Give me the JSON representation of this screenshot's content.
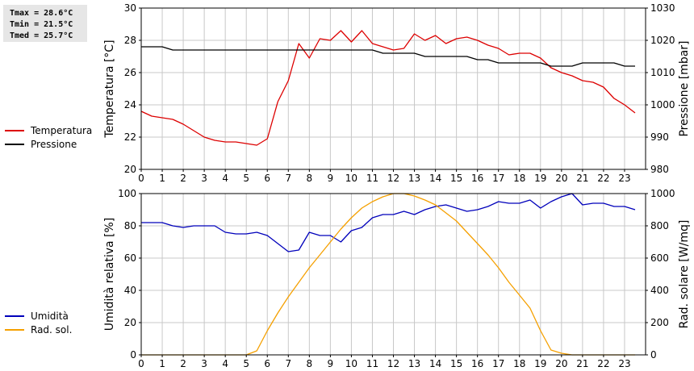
{
  "stats": {
    "tmax": "Tmax = 28.6°C",
    "tmin": "Tmin = 21.5°C",
    "tmed": "Tmed = 25.7°C"
  },
  "colors": {
    "temperature": "#dd0000",
    "pressure": "#000000",
    "humidity": "#0000bb",
    "radiation": "#f5a000",
    "grid": "#c8c8c8",
    "background": "#ffffff"
  },
  "chart_data": [
    {
      "type": "line",
      "grid": true,
      "legend": "left",
      "x_ticks": [
        0,
        1,
        2,
        3,
        4,
        5,
        6,
        7,
        8,
        9,
        10,
        11,
        12,
        13,
        14,
        15,
        16,
        17,
        18,
        19,
        20,
        21,
        22,
        23
      ],
      "xlim": [
        0,
        24
      ],
      "y_axes": {
        "left": {
          "label": "Temperatura [°C]",
          "ylim": [
            20,
            30
          ],
          "ticks": [
            20,
            22,
            24,
            26,
            28,
            30
          ]
        },
        "right": {
          "label": "Pressione [mbar]",
          "ylim": [
            980,
            1030
          ],
          "ticks": [
            980,
            990,
            1000,
            1010,
            1020,
            1030
          ]
        }
      },
      "series": [
        {
          "name": "Temperatura",
          "axis": "left",
          "color": "#dd0000",
          "x": [
            0,
            0.5,
            1,
            1.5,
            2,
            2.5,
            3,
            3.5,
            4,
            4.5,
            5,
            5.5,
            6,
            6.5,
            7,
            7.5,
            8,
            8.5,
            9,
            9.5,
            10,
            10.5,
            11,
            11.5,
            12,
            12.5,
            13,
            13.5,
            14,
            14.5,
            15,
            15.5,
            16,
            16.5,
            17,
            17.5,
            18,
            18.5,
            19,
            19.5,
            20,
            20.5,
            21,
            21.5,
            22,
            22.5,
            23,
            23.5
          ],
          "y": [
            23.6,
            23.3,
            23.2,
            23.1,
            22.8,
            22.4,
            22.0,
            21.8,
            21.7,
            21.7,
            21.6,
            21.5,
            21.9,
            24.2,
            25.5,
            27.8,
            26.9,
            28.1,
            28.0,
            28.6,
            27.9,
            28.6,
            27.8,
            27.6,
            27.4,
            27.5,
            28.4,
            28.0,
            28.3,
            27.8,
            28.1,
            28.2,
            28.0,
            27.7,
            27.5,
            27.1,
            27.2,
            27.2,
            26.9,
            26.3,
            26.0,
            25.8,
            25.5,
            25.4,
            25.1,
            24.4,
            24.0,
            23.5
          ]
        },
        {
          "name": "Pressione",
          "axis": "right",
          "color": "#000000",
          "x": [
            0,
            0.5,
            1,
            1.5,
            2,
            2.5,
            3,
            3.5,
            4,
            4.5,
            5,
            5.5,
            6,
            6.5,
            7,
            7.5,
            8,
            8.5,
            9,
            9.5,
            10,
            10.5,
            11,
            11.5,
            12,
            12.5,
            13,
            13.5,
            14,
            14.5,
            15,
            15.5,
            16,
            16.5,
            17,
            17.5,
            18,
            18.5,
            19,
            19.5,
            20,
            20.5,
            21,
            21.5,
            22,
            22.5,
            23,
            23.5
          ],
          "y": [
            1018,
            1018,
            1018,
            1017,
            1017,
            1017,
            1017,
            1017,
            1017,
            1017,
            1017,
            1017,
            1017,
            1017,
            1017,
            1017,
            1017,
            1017,
            1017,
            1017,
            1017,
            1017,
            1017,
            1016,
            1016,
            1016,
            1016,
            1015,
            1015,
            1015,
            1015,
            1015,
            1014,
            1014,
            1013,
            1013,
            1013,
            1013,
            1013,
            1012,
            1012,
            1012,
            1013,
            1013,
            1013,
            1013,
            1012,
            1012
          ]
        }
      ]
    },
    {
      "type": "line",
      "grid": true,
      "legend": "left",
      "x_ticks": [
        0,
        1,
        2,
        3,
        4,
        5,
        6,
        7,
        8,
        9,
        10,
        11,
        12,
        13,
        14,
        15,
        16,
        17,
        18,
        19,
        20,
        21,
        22,
        23
      ],
      "xlim": [
        0,
        24
      ],
      "y_axes": {
        "left": {
          "label": "Umidità relativa [%]",
          "ylim": [
            0,
            100
          ],
          "ticks": [
            0,
            20,
            40,
            60,
            80,
            100
          ]
        },
        "right": {
          "label": "Rad. solare [W/mq]",
          "ylim": [
            0,
            1000
          ],
          "ticks": [
            0,
            200,
            400,
            600,
            800,
            1000
          ]
        }
      },
      "series": [
        {
          "name": "Umidità",
          "axis": "left",
          "color": "#0000bb",
          "x": [
            0,
            0.5,
            1,
            1.5,
            2,
            2.5,
            3,
            3.5,
            4,
            4.5,
            5,
            5.5,
            6,
            6.5,
            7,
            7.5,
            8,
            8.5,
            9,
            9.5,
            10,
            10.5,
            11,
            11.5,
            12,
            12.5,
            13,
            13.5,
            14,
            14.5,
            15,
            15.5,
            16,
            16.5,
            17,
            17.5,
            18,
            18.5,
            19,
            19.5,
            20,
            20.5,
            21,
            21.5,
            22,
            22.5,
            23,
            23.5
          ],
          "y": [
            82,
            82,
            82,
            80,
            79,
            80,
            80,
            80,
            76,
            75,
            75,
            76,
            74,
            69,
            64,
            65,
            76,
            74,
            74,
            70,
            77,
            79,
            85,
            87,
            87,
            89,
            87,
            90,
            92,
            93,
            91,
            89,
            90,
            92,
            95,
            94,
            94,
            96,
            91,
            95,
            98,
            100,
            93,
            94,
            94,
            92,
            92,
            90
          ]
        },
        {
          "name": "Rad. sol.",
          "axis": "right",
          "color": "#f5a000",
          "x": [
            0,
            0.5,
            1,
            1.5,
            2,
            2.5,
            3,
            3.5,
            4,
            4.5,
            5,
            5.5,
            6,
            6.5,
            7,
            7.5,
            8,
            8.5,
            9,
            9.5,
            10,
            10.5,
            11,
            11.5,
            12,
            12.5,
            13,
            13.5,
            14,
            14.5,
            15,
            15.5,
            16,
            16.5,
            17,
            17.5,
            18,
            18.5,
            19,
            19.5,
            20,
            20.5,
            21,
            21.5,
            22,
            22.5,
            23,
            23.5
          ],
          "y": [
            0,
            0,
            0,
            0,
            0,
            0,
            0,
            0,
            0,
            0,
            0,
            25,
            150,
            260,
            360,
            450,
            540,
            620,
            700,
            780,
            850,
            910,
            950,
            980,
            1000,
            1000,
            985,
            960,
            930,
            880,
            830,
            760,
            690,
            620,
            540,
            450,
            370,
            290,
            150,
            30,
            10,
            0,
            0,
            0,
            0,
            0,
            0,
            0
          ]
        }
      ]
    }
  ]
}
